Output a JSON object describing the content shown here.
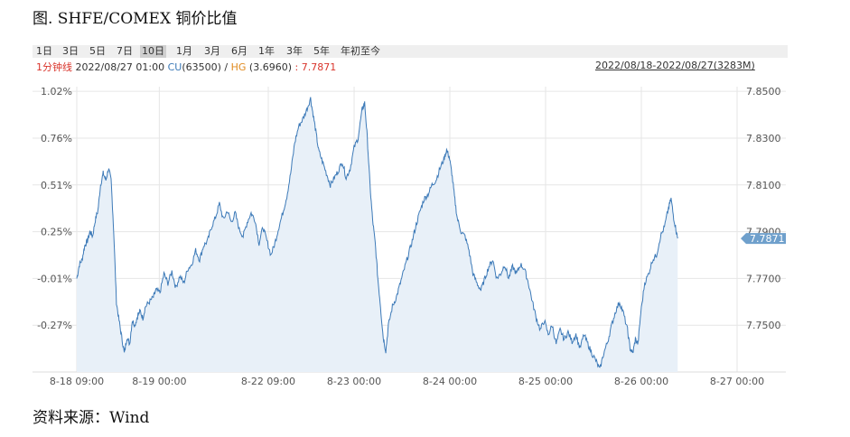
{
  "figure_title": "图. SHFE/COMEX 铜价比值",
  "source": "资料来源：Wind",
  "tabs": [
    "1日",
    "3日",
    "5日",
    "7日",
    "10日",
    "1月",
    "3月",
    "6月",
    "1年",
    "3年",
    "5年",
    "年初至今"
  ],
  "active_tab": "10日",
  "info": {
    "period": "1分钟线",
    "datetime": "2022/08/27 01:00",
    "cu_label": "CU",
    "cu_value": "(63500)",
    "separator": " / ",
    "hg_label": "HG",
    "hg_value": "(3.6960)",
    "ratio": ": 7.7871"
  },
  "range_label": "2022/08/18-2022/08/27(3283M)",
  "colors": {
    "line": "#3d7ab8",
    "fill": "#e8f0f8",
    "grid": "#e6e6e6",
    "marker": "#6fa0cc"
  },
  "chart_data": {
    "type": "line",
    "title": "",
    "x_ticks": [
      "8-18 09:00",
      "8-19 00:00",
      "8-22 09:00",
      "8-23 00:00",
      "8-24 00:00",
      "8-25 00:00",
      "8-26 00:00",
      "8-27 00:00"
    ],
    "x_tick_positions": [
      0,
      0.125,
      0.29,
      0.42,
      0.565,
      0.71,
      0.855,
      1.0
    ],
    "y_left_ticks": [
      "1.02%",
      "0.76%",
      "0.51%",
      "0.25%",
      "-0.01%",
      "-0.27%"
    ],
    "y_right_ticks": [
      "7.8500",
      "7.8300",
      "7.8100",
      "7.7900",
      "7.7700",
      "7.7500"
    ],
    "ylim": [
      7.73,
      7.852
    ],
    "last_value": "7.7871",
    "series": [
      {
        "values": [
          [
            0.0,
            7.77
          ],
          [
            0.004,
            7.776
          ],
          [
            0.008,
            7.778
          ],
          [
            0.012,
            7.784
          ],
          [
            0.016,
            7.786
          ],
          [
            0.02,
            7.79
          ],
          [
            0.024,
            7.788
          ],
          [
            0.028,
            7.795
          ],
          [
            0.032,
            7.799
          ],
          [
            0.036,
            7.81
          ],
          [
            0.04,
            7.815
          ],
          [
            0.044,
            7.812
          ],
          [
            0.048,
            7.817
          ],
          [
            0.052,
            7.812
          ],
          [
            0.056,
            7.79
          ],
          [
            0.06,
            7.76
          ],
          [
            0.064,
            7.752
          ],
          [
            0.068,
            7.745
          ],
          [
            0.072,
            7.738
          ],
          [
            0.076,
            7.745
          ],
          [
            0.08,
            7.742
          ],
          [
            0.084,
            7.752
          ],
          [
            0.088,
            7.75
          ],
          [
            0.092,
            7.754
          ],
          [
            0.096,
            7.756
          ],
          [
            0.1,
            7.753
          ],
          [
            0.104,
            7.758
          ],
          [
            0.11,
            7.76
          ],
          [
            0.116,
            7.762
          ],
          [
            0.12,
            7.765
          ],
          [
            0.126,
            7.764
          ],
          [
            0.132,
            7.772
          ],
          [
            0.138,
            7.768
          ],
          [
            0.144,
            7.773
          ],
          [
            0.15,
            7.766
          ],
          [
            0.156,
            7.771
          ],
          [
            0.162,
            7.768
          ],
          [
            0.168,
            7.774
          ],
          [
            0.174,
            7.776
          ],
          [
            0.18,
            7.782
          ],
          [
            0.186,
            7.778
          ],
          [
            0.192,
            7.784
          ],
          [
            0.198,
            7.786
          ],
          [
            0.204,
            7.792
          ],
          [
            0.21,
            7.796
          ],
          [
            0.216,
            7.802
          ],
          [
            0.222,
            7.795
          ],
          [
            0.228,
            7.799
          ],
          [
            0.234,
            7.794
          ],
          [
            0.24,
            7.798
          ],
          [
            0.246,
            7.791
          ],
          [
            0.252,
            7.788
          ],
          [
            0.258,
            7.794
          ],
          [
            0.264,
            7.798
          ],
          [
            0.27,
            7.795
          ],
          [
            0.276,
            7.785
          ],
          [
            0.282,
            7.792
          ],
          [
            0.288,
            7.786
          ],
          [
            0.294,
            7.78
          ],
          [
            0.3,
            7.785
          ],
          [
            0.306,
            7.792
          ],
          [
            0.312,
            7.798
          ],
          [
            0.318,
            7.805
          ],
          [
            0.324,
            7.815
          ],
          [
            0.33,
            7.828
          ],
          [
            0.336,
            7.835
          ],
          [
            0.342,
            7.838
          ],
          [
            0.348,
            7.842
          ],
          [
            0.354,
            7.847
          ],
          [
            0.358,
            7.84
          ],
          [
            0.362,
            7.833
          ],
          [
            0.366,
            7.825
          ],
          [
            0.372,
            7.82
          ],
          [
            0.378,
            7.815
          ],
          [
            0.384,
            7.81
          ],
          [
            0.39,
            7.813
          ],
          [
            0.396,
            7.816
          ],
          [
            0.402,
            7.82
          ],
          [
            0.408,
            7.813
          ],
          [
            0.414,
            7.817
          ],
          [
            0.42,
            7.826
          ],
          [
            0.426,
            7.83
          ],
          [
            0.432,
            7.842
          ],
          [
            0.436,
            7.845
          ],
          [
            0.44,
            7.83
          ],
          [
            0.444,
            7.81
          ],
          [
            0.448,
            7.795
          ],
          [
            0.452,
            7.785
          ],
          [
            0.456,
            7.77
          ],
          [
            0.46,
            7.758
          ],
          [
            0.464,
            7.745
          ],
          [
            0.468,
            7.739
          ],
          [
            0.472,
            7.75
          ],
          [
            0.478,
            7.758
          ],
          [
            0.484,
            7.762
          ],
          [
            0.49,
            7.768
          ],
          [
            0.496,
            7.774
          ],
          [
            0.502,
            7.78
          ],
          [
            0.508,
            7.786
          ],
          [
            0.514,
            7.793
          ],
          [
            0.52,
            7.799
          ],
          [
            0.526,
            7.804
          ],
          [
            0.532,
            7.806
          ],
          [
            0.538,
            7.81
          ],
          [
            0.544,
            7.812
          ],
          [
            0.55,
            7.817
          ],
          [
            0.556,
            7.821
          ],
          [
            0.56,
            7.825
          ],
          [
            0.564,
            7.822
          ],
          [
            0.568,
            7.815
          ],
          [
            0.572,
            7.805
          ],
          [
            0.576,
            7.796
          ],
          [
            0.582,
            7.79
          ],
          [
            0.588,
            7.788
          ],
          [
            0.594,
            7.782
          ],
          [
            0.6,
            7.772
          ],
          [
            0.606,
            7.768
          ],
          [
            0.612,
            7.765
          ],
          [
            0.618,
            7.77
          ],
          [
            0.624,
            7.775
          ],
          [
            0.63,
            7.778
          ],
          [
            0.636,
            7.77
          ],
          [
            0.642,
            7.772
          ],
          [
            0.648,
            7.776
          ],
          [
            0.654,
            7.77
          ],
          [
            0.66,
            7.775
          ],
          [
            0.666,
            7.772
          ],
          [
            0.672,
            7.776
          ],
          [
            0.678,
            7.774
          ],
          [
            0.684,
            7.768
          ],
          [
            0.69,
            7.76
          ],
          [
            0.696,
            7.753
          ],
          [
            0.702,
            7.748
          ],
          [
            0.708,
            7.752
          ],
          [
            0.714,
            7.746
          ],
          [
            0.72,
            7.75
          ],
          [
            0.726,
            7.742
          ],
          [
            0.732,
            7.748
          ],
          [
            0.738,
            7.744
          ],
          [
            0.744,
            7.747
          ],
          [
            0.75,
            7.743
          ],
          [
            0.756,
            7.746
          ],
          [
            0.762,
            7.74
          ],
          [
            0.768,
            7.746
          ],
          [
            0.774,
            7.742
          ],
          [
            0.78,
            7.738
          ],
          [
            0.786,
            7.735
          ],
          [
            0.792,
            7.731
          ],
          [
            0.798,
            7.738
          ],
          [
            0.804,
            7.743
          ],
          [
            0.81,
            7.75
          ],
          [
            0.816,
            7.756
          ],
          [
            0.822,
            7.76
          ],
          [
            0.828,
            7.755
          ],
          [
            0.834,
            7.748
          ],
          [
            0.838,
            7.74
          ],
          [
            0.842,
            7.738
          ],
          [
            0.846,
            7.744
          ],
          [
            0.85,
            7.742
          ],
          [
            0.854,
            7.755
          ],
          [
            0.86,
            7.768
          ],
          [
            0.866,
            7.772
          ],
          [
            0.872,
            7.778
          ],
          [
            0.878,
            7.78
          ],
          [
            0.884,
            7.788
          ],
          [
            0.89,
            7.792
          ],
          [
            0.896,
            7.8
          ],
          [
            0.9,
            7.804
          ],
          [
            0.904,
            7.796
          ],
          [
            0.908,
            7.79
          ],
          [
            0.91,
            7.7871
          ]
        ]
      }
    ]
  }
}
